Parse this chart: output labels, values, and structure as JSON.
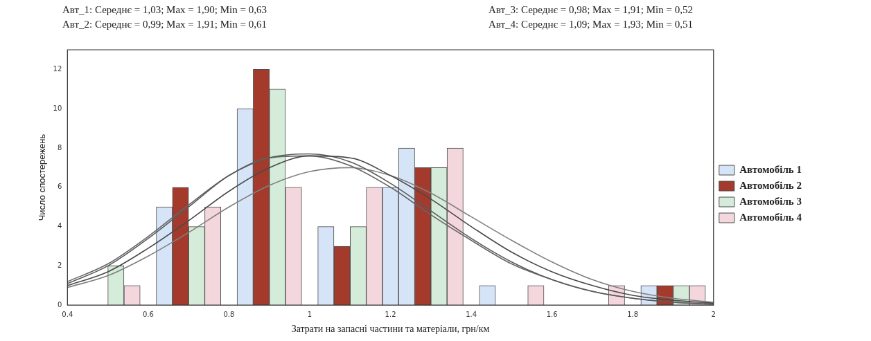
{
  "chart_data": {
    "type": "bar",
    "xlabel": "Затрати на запасні частини та матеріали, грн/км",
    "ylabel": "Число спостережень",
    "annotations": [
      "Авт_1: Середнє = 1,03; Max = 1,90; Min = 0,63",
      "Авт_2: Середнє = 0,99; Max = 1,91; Min = 0,61",
      "Авт_3: Середнє = 0,98; Max = 1,91; Min = 0,52",
      "Авт_4: Середнє = 1,09; Max = 1,93; Min = 0,51"
    ],
    "xlim": [
      0.4,
      2.0
    ],
    "xticks": [
      0.4,
      0.6,
      0.8,
      1.0,
      1.2,
      1.4,
      1.6,
      1.8,
      2.0
    ],
    "ylim": [
      0,
      13
    ],
    "yticks": [
      0,
      2,
      4,
      6,
      8,
      10,
      12
    ],
    "legend": "right",
    "series": [
      {
        "name": "Автомобіль 1",
        "color": "#d6e4f7",
        "x": [
          0.64,
          0.84,
          1.04,
          1.2,
          1.24,
          1.44,
          1.84
        ],
        "values": [
          5,
          10,
          4,
          6,
          8,
          1,
          1
        ]
      },
      {
        "name": "Автомобіль 2",
        "color": "#a33a2c",
        "x": [
          0.68,
          0.88,
          1.08,
          1.28,
          1.88
        ],
        "values": [
          6,
          12,
          3,
          7,
          1
        ]
      },
      {
        "name": "Автомобіль 3",
        "color": "#d4ecd9",
        "x": [
          0.52,
          0.72,
          0.92,
          1.12,
          1.32,
          1.92
        ],
        "values": [
          2,
          4,
          11,
          4,
          7,
          1
        ]
      },
      {
        "name": "Автомобіль 4",
        "color": "#f4d7dd",
        "x": [
          0.56,
          0.76,
          0.96,
          1.16,
          1.36,
          1.56,
          1.76,
          1.96
        ],
        "values": [
          1,
          5,
          6,
          6,
          8,
          1,
          1,
          1
        ]
      },
      {
        "type": "line",
        "color": "#4a4a4a",
        "x": [
          0.4,
          0.5,
          0.6,
          0.7,
          0.8,
          0.9,
          1.0,
          1.1,
          1.2,
          1.3,
          1.4,
          1.5,
          1.6,
          1.7,
          1.8,
          1.9,
          2.0
        ],
        "values": [
          1.0,
          1.7,
          2.9,
          4.3,
          5.8,
          7.0,
          7.6,
          7.5,
          6.6,
          5.4,
          4.0,
          2.7,
          1.7,
          1.0,
          0.5,
          0.25,
          0.1
        ]
      },
      {
        "type": "line",
        "color": "#5a5a5a",
        "x": [
          0.4,
          0.5,
          0.6,
          0.7,
          0.8,
          0.9,
          1.0,
          1.1,
          1.2,
          1.3,
          1.4,
          1.5,
          1.6,
          1.7,
          1.8,
          1.9,
          2.0
        ],
        "values": [
          1.1,
          2.0,
          3.4,
          5.0,
          6.6,
          7.5,
          7.7,
          7.3,
          6.2,
          4.8,
          3.4,
          2.2,
          1.3,
          0.7,
          0.35,
          0.15,
          0.05
        ]
      },
      {
        "type": "line",
        "color": "#666666",
        "x": [
          0.4,
          0.5,
          0.6,
          0.7,
          0.8,
          0.9,
          1.0,
          1.1,
          1.2,
          1.3,
          1.4,
          1.5,
          1.6,
          1.7,
          1.8,
          1.9,
          2.0
        ],
        "values": [
          1.2,
          2.1,
          3.5,
          5.1,
          6.6,
          7.5,
          7.6,
          7.1,
          6.0,
          4.6,
          3.3,
          2.1,
          1.3,
          0.7,
          0.35,
          0.15,
          0.05
        ]
      },
      {
        "type": "line",
        "color": "#808080",
        "x": [
          0.4,
          0.5,
          0.6,
          0.7,
          0.8,
          0.9,
          1.0,
          1.1,
          1.2,
          1.3,
          1.4,
          1.5,
          1.6,
          1.7,
          1.8,
          1.9,
          2.0
        ],
        "values": [
          0.9,
          1.5,
          2.5,
          3.7,
          5.0,
          6.1,
          6.8,
          7.0,
          6.6,
          5.7,
          4.5,
          3.3,
          2.2,
          1.3,
          0.7,
          0.35,
          0.15
        ]
      }
    ]
  }
}
